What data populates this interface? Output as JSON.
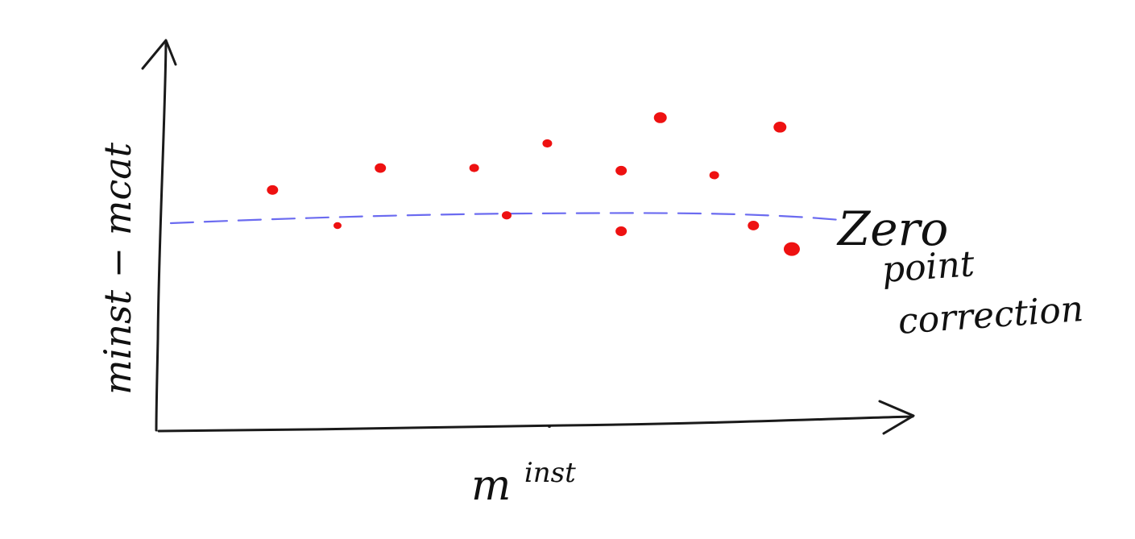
{
  "colors": {
    "ink": "#1a1a1a",
    "points": "#ee1111",
    "zero_line": "#6b6bf0",
    "background": "#ffffff"
  },
  "chart_data": {
    "type": "scatter",
    "title": "",
    "xlabel_main": "m",
    "xlabel_sup": "inst",
    "ylabel": "minst − mcat",
    "xlim": [
      0,
      1
    ],
    "ylim": [
      0,
      1
    ],
    "grid": false,
    "annotation": {
      "lines": [
        "Zero",
        "point",
        "correction"
      ]
    },
    "zero_line": {
      "style": "dashed",
      "y": 0.6
    },
    "series": [
      {
        "x": [
          0.153,
          0.241,
          0.299,
          0.426,
          0.47,
          0.525,
          0.625,
          0.625,
          0.678,
          0.751,
          0.804,
          0.84,
          0.856
        ],
        "y": [
          0.626,
          0.532,
          0.684,
          0.684,
          0.559,
          0.749,
          0.677,
          0.517,
          0.817,
          0.665,
          0.532,
          0.792,
          0.47
        ],
        "sizes": [
          7,
          5,
          7,
          6,
          6,
          6,
          7,
          7,
          8,
          6,
          7,
          8,
          10
        ]
      }
    ]
  }
}
